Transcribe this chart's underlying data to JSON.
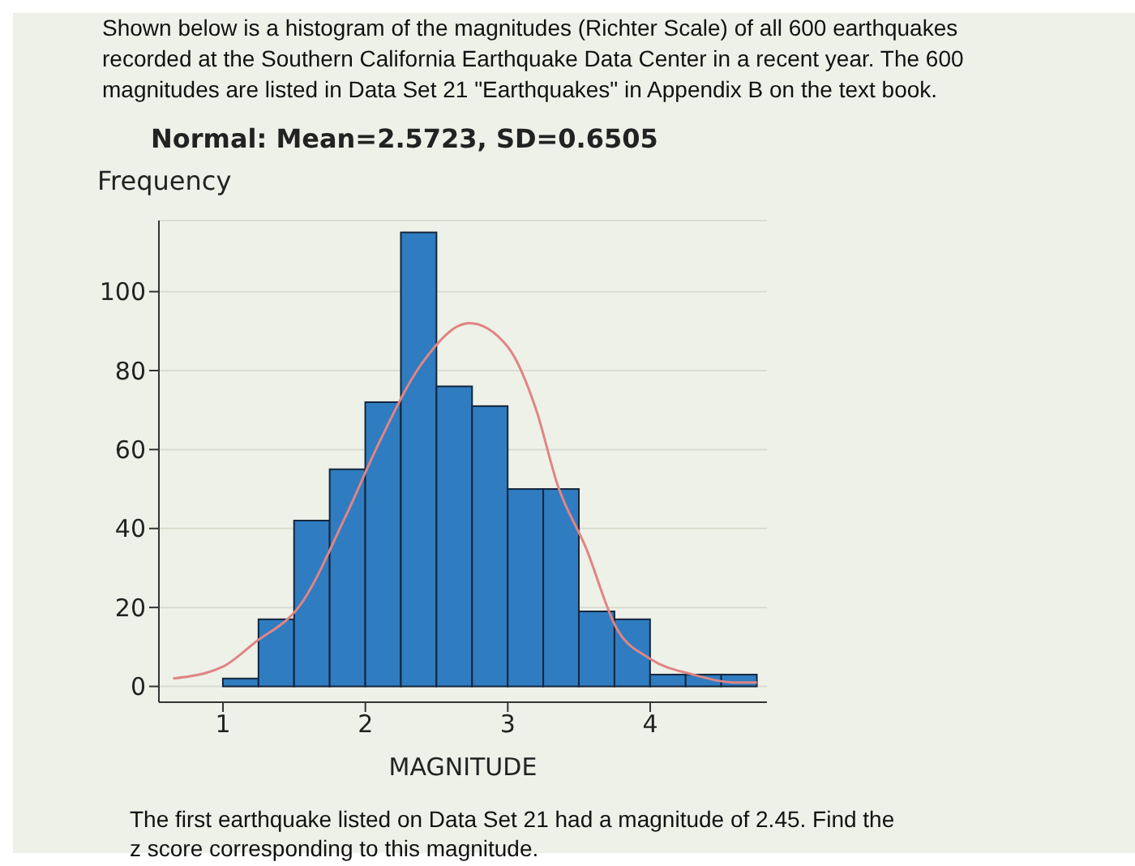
{
  "chart_data": {
    "type": "histogram",
    "title": "Normal: Mean=2.5723, SD=0.6505",
    "xlabel": "MAGNITUDE",
    "ylabel": "Frequency",
    "annotations": [
      "Shown below is a histogram of the magnitudes (Richter Scale) of all 600 earthquakes recorded at the Southern California Earthquake Data Center in a recent year. The 600 magnitudes are listed in Data Set 21 \"Earthquakes\" in Appendix B on the text book.",
      "The first earthquake listed on Data Set 21 had a magnitude of 2.45. Find the z score corresponding to this magnitude."
    ],
    "bins": [
      1.0,
      1.25,
      1.5,
      1.75,
      2.0,
      2.25,
      2.5,
      2.75,
      3.0,
      3.25,
      3.5,
      3.75,
      4.0,
      4.25,
      4.5,
      4.75
    ],
    "values": [
      2,
      17,
      42,
      55,
      72,
      115,
      76,
      71,
      50,
      50,
      19,
      17,
      3,
      3,
      3
    ],
    "color": "#2f7cc0",
    "series": [
      {
        "type": "line",
        "color": "#e08585",
        "x": [
          0.65,
          1.0,
          1.22,
          1.55,
          1.86,
          2.1,
          2.4,
          2.73,
          3.0,
          3.2,
          3.35,
          3.55,
          3.76,
          4.0,
          4.3,
          4.6,
          4.75
        ],
        "values": [
          2,
          5,
          11,
          21,
          43,
          62,
          82,
          92,
          86,
          70,
          51,
          35,
          15,
          7,
          3,
          1,
          1
        ]
      }
    ],
    "xlim": [
      0.55,
      4.82
    ],
    "ylim": [
      -4,
      118
    ],
    "xticks": [
      1,
      2,
      3,
      4
    ],
    "yticks": [
      0,
      20,
      40,
      60,
      80,
      100
    ],
    "grid": "y"
  }
}
